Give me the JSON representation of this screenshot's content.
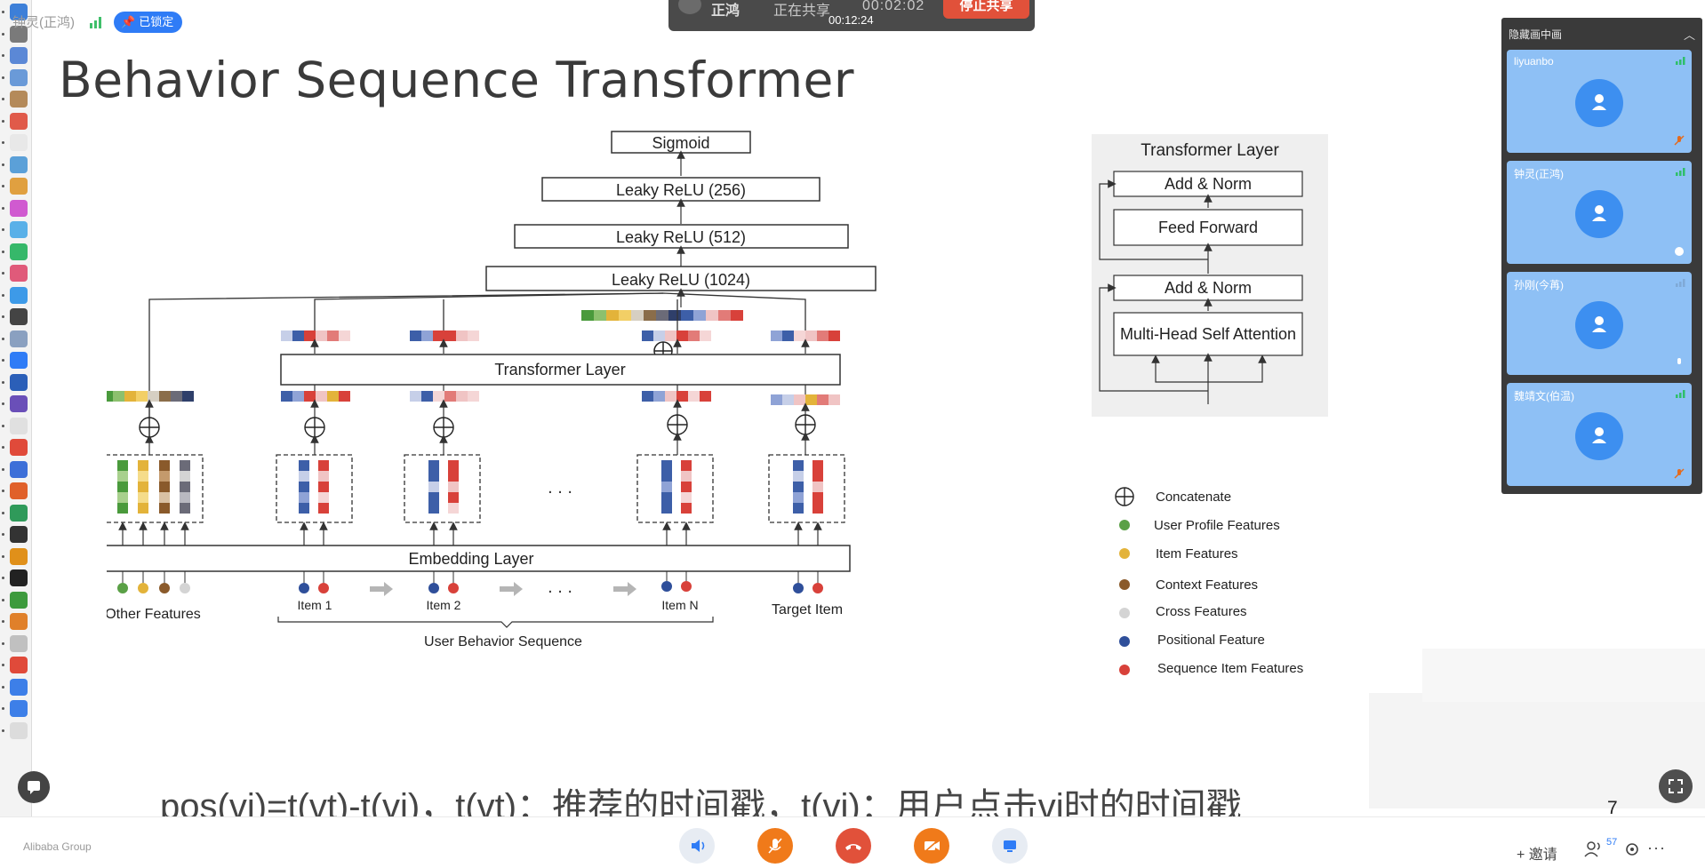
{
  "meeting": {
    "host_name": "钟灵(正鸿)",
    "locked_label": "已锁定"
  },
  "share_bar": {
    "presenter": "正鸿",
    "status": "正在共享",
    "elapsed": "00:02:02",
    "clock": "00:12:24",
    "stop_label": "停止共享"
  },
  "slide": {
    "title": "Behavior Sequence Transformer",
    "page_number": "7",
    "formula": "pos(vi)=t(vt)-t(vi)，t(vt)：推荐的时间戳，t(vi)：用户点击vi时的时间戳"
  },
  "diagram": {
    "top_stack": [
      "Sigmoid",
      "Leaky ReLU (256)",
      "Leaky ReLU (512)",
      "Leaky ReLU (1024)"
    ],
    "transformer_label": "Transformer Layer",
    "embedding_label": "Embedding  Layer",
    "other_features_label": "Other Features",
    "items": [
      "Item 1",
      "Item 2",
      "Item N",
      "Target Item"
    ],
    "ellipsis": ". . .",
    "sequence_label": "User Behavior Sequence",
    "inset_title": "Transformer Layer",
    "inset_blocks": [
      "Add & Norm",
      "Feed Forward",
      "Add & Norm",
      "Multi-Head Self Attention"
    ],
    "legend": [
      {
        "label": "Concatenate",
        "symbol": "concat",
        "color": "#222222"
      },
      {
        "label": "User Profile Features",
        "symbol": "dot",
        "color": "#5aa046"
      },
      {
        "label": "Item Features",
        "symbol": "dot",
        "color": "#e3b33a"
      },
      {
        "label": "Context Features",
        "symbol": "dot",
        "color": "#8a5a2b"
      },
      {
        "label": "Cross Features",
        "symbol": "dot",
        "color": "#d4d4d4"
      },
      {
        "label": "Positional Feature",
        "symbol": "dot",
        "color": "#2f4f9a"
      },
      {
        "label": "Sequence Item Features",
        "symbol": "dot",
        "color": "#d8413a"
      }
    ]
  },
  "panel": {
    "title": "隐藏画中画",
    "participants": [
      {
        "name": "liyuanbo"
      },
      {
        "name": "钟灵(正鸿)"
      },
      {
        "name": "孙刚(今苒)"
      },
      {
        "name": "魏靖文(伯温)"
      }
    ]
  },
  "bottom_bar": {
    "org": "Alibaba Group",
    "invite_label": "+ 邀请",
    "participants_count": "57",
    "more_label": "···"
  },
  "colors": {
    "accent": "#2f7cf6",
    "stop_red": "#e1513a",
    "tile_blue": "#8ec0f5",
    "control_orange": "#f07a1a"
  }
}
